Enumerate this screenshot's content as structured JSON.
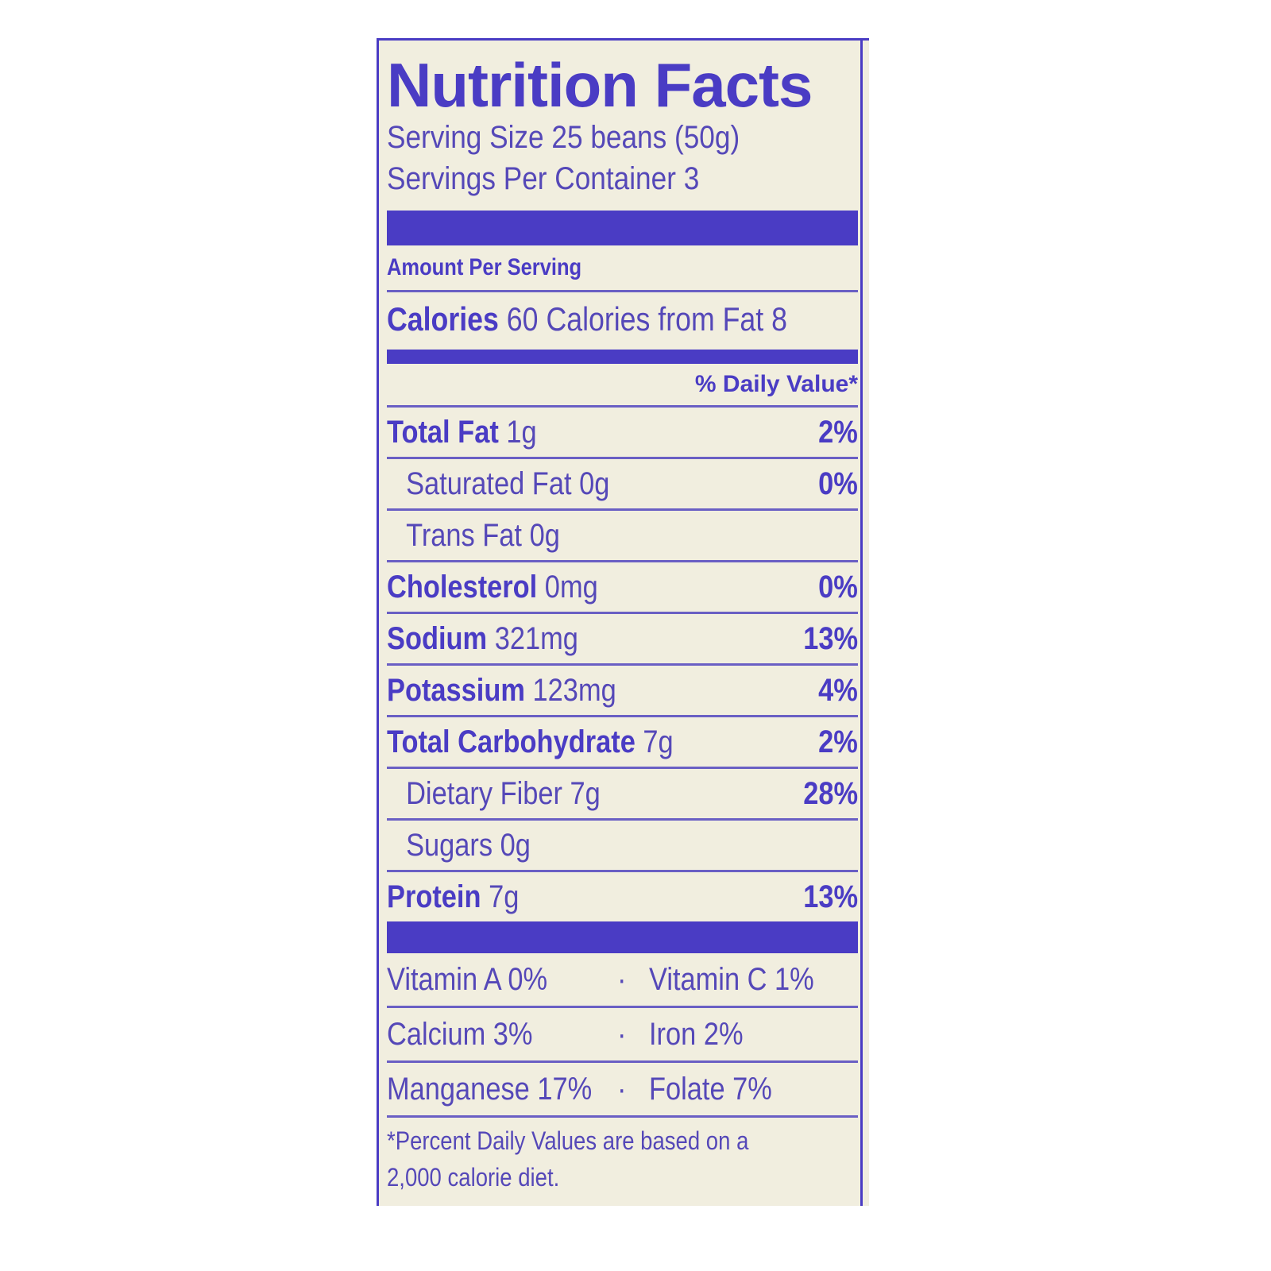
{
  "title": "Nutrition Facts",
  "serving_size": "Serving Size 25 beans (50g)",
  "servings_per_container": "Servings Per Container 3",
  "amount_per_serving": "Amount Per Serving",
  "calories": {
    "label": "Calories",
    "value": "60",
    "from_fat": "Calories from Fat 8"
  },
  "daily_value_header": "% Daily Value*",
  "nutrients": [
    {
      "name": "Total Fat",
      "amount": "1g",
      "pct": "2%",
      "bold": true
    },
    {
      "name": "Saturated Fat",
      "amount": "0g",
      "pct": "0%",
      "bold": false
    },
    {
      "name": "Trans Fat",
      "amount": "0g",
      "pct": "",
      "bold": false
    },
    {
      "name": "Cholesterol",
      "amount": "0mg",
      "pct": "0%",
      "bold": true
    },
    {
      "name": "Sodium",
      "amount": "321mg",
      "pct": "13%",
      "bold": true
    },
    {
      "name": "Potassium",
      "amount": "123mg",
      "pct": "4%",
      "bold": true
    },
    {
      "name": "Total Carbohydrate",
      "amount": "7g",
      "pct": "2%",
      "bold": true
    },
    {
      "name": "Dietary Fiber",
      "amount": "7g",
      "pct": "28%",
      "bold": false
    },
    {
      "name": "Sugars",
      "amount": "0g",
      "pct": "",
      "bold": false
    },
    {
      "name": "Protein",
      "amount": "7g",
      "pct": "13%",
      "bold": true
    }
  ],
  "vitamins": [
    [
      "Vitamin A 0%",
      "Vitamin C 1%"
    ],
    [
      "Calcium 3%",
      "Iron 2%"
    ],
    [
      "Manganese 17%",
      "Folate 7%"
    ]
  ],
  "separator": "·",
  "footnote": [
    "*Percent Daily Values are based on a",
    "2,000 calorie diet."
  ],
  "colors": {
    "ink": "#4a3cc4",
    "background": "#f1eedf"
  }
}
